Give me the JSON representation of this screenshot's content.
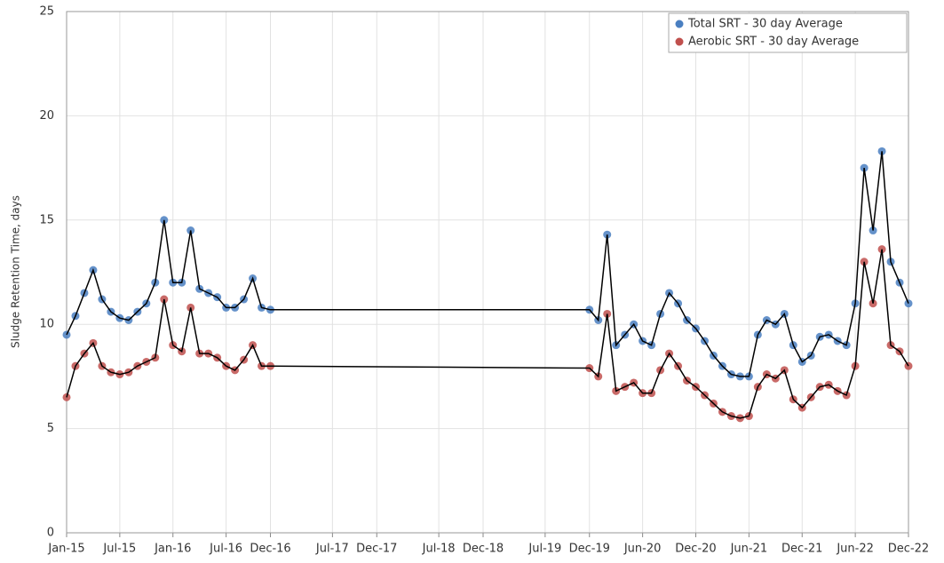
{
  "chart_data": {
    "type": "scatter",
    "y_label": "Sludge Retention Time, days",
    "x": [
      "2015-01",
      "2015-02",
      "2015-03",
      "2015-04",
      "2015-05",
      "2015-06",
      "2015-07",
      "2015-08",
      "2015-09",
      "2015-10",
      "2015-11",
      "2015-12",
      "2016-01",
      "2016-02",
      "2016-03",
      "2016-04",
      "2016-05",
      "2016-06",
      "2016-07",
      "2016-08",
      "2016-09",
      "2016-10",
      "2016-11",
      "2016-12",
      "2019-12",
      "2020-01",
      "2020-02",
      "2020-03",
      "2020-04",
      "2020-05",
      "2020-06",
      "2020-07",
      "2020-08",
      "2020-09",
      "2020-10",
      "2020-11",
      "2020-12",
      "2021-01",
      "2021-02",
      "2021-03",
      "2021-04",
      "2021-05",
      "2021-06",
      "2021-07",
      "2021-08",
      "2021-09",
      "2021-10",
      "2021-11",
      "2021-12",
      "2022-01",
      "2022-02",
      "2022-03",
      "2022-04",
      "2022-05",
      "2022-06",
      "2022-07",
      "2022-08",
      "2022-09",
      "2022-10",
      "2022-11",
      "2022-12"
    ],
    "series": [
      {
        "name": "Total SRT - 30 day Average",
        "color": "#4a7fc1",
        "values": [
          9.5,
          10.4,
          11.5,
          12.6,
          11.2,
          10.6,
          10.3,
          10.2,
          10.6,
          11.0,
          12.0,
          15.0,
          12.0,
          12.0,
          14.5,
          11.7,
          11.5,
          11.3,
          10.8,
          10.8,
          11.2,
          12.2,
          10.8,
          10.7,
          10.7,
          10.2,
          14.3,
          9.0,
          9.5,
          10.0,
          9.2,
          9.0,
          10.5,
          11.5,
          11.0,
          10.2,
          9.8,
          9.2,
          8.5,
          8.0,
          7.6,
          7.5,
          7.5,
          9.5,
          10.2,
          10.0,
          10.5,
          9.0,
          8.2,
          8.5,
          9.4,
          9.5,
          9.2,
          9.0,
          11.0,
          17.5,
          14.5,
          18.3,
          13.0,
          12.0,
          11.0
        ]
      },
      {
        "name": "Aerobic SRT - 30 day Average",
        "color": "#c0504d",
        "values": [
          6.5,
          8.0,
          8.6,
          9.1,
          8.0,
          7.7,
          7.6,
          7.7,
          8.0,
          8.2,
          8.4,
          11.2,
          9.0,
          8.7,
          10.8,
          8.6,
          8.6,
          8.4,
          8.0,
          7.8,
          8.3,
          9.0,
          8.0,
          8.0,
          7.9,
          7.5,
          10.5,
          6.8,
          7.0,
          7.2,
          6.7,
          6.7,
          7.8,
          8.6,
          8.0,
          7.3,
          7.0,
          6.6,
          6.2,
          5.8,
          5.6,
          5.5,
          5.6,
          7.0,
          7.6,
          7.4,
          7.8,
          6.4,
          6.0,
          6.5,
          7.0,
          7.1,
          6.8,
          6.6,
          8.0,
          13.0,
          11.0,
          13.6,
          9.0,
          8.7,
          8.0
        ]
      }
    ],
    "line_color": "#000000",
    "xlim": [
      "2015-01",
      "2022-12"
    ],
    "xticks": [
      {
        "value": "2015-01",
        "label": "Jan-15"
      },
      {
        "value": "2015-07",
        "label": "Jul-15"
      },
      {
        "value": "2016-01",
        "label": "Jan-16"
      },
      {
        "value": "2016-07",
        "label": "Jul-16"
      },
      {
        "value": "2016-12",
        "label": "Dec-16"
      },
      {
        "value": "2017-07",
        "label": "Jul-17"
      },
      {
        "value": "2017-12",
        "label": "Dec-17"
      },
      {
        "value": "2018-07",
        "label": "Jul-18"
      },
      {
        "value": "2018-12",
        "label": "Dec-18"
      },
      {
        "value": "2019-07",
        "label": "Jul-19"
      },
      {
        "value": "2019-12",
        "label": "Dec-19"
      },
      {
        "value": "2020-06",
        "label": "Jun-20"
      },
      {
        "value": "2020-12",
        "label": "Dec-20"
      },
      {
        "value": "2021-06",
        "label": "Jun-21"
      },
      {
        "value": "2021-12",
        "label": "Dec-21"
      },
      {
        "value": "2022-06",
        "label": "Jun-22"
      },
      {
        "value": "2022-12",
        "label": "Dec-22"
      }
    ],
    "ylim": [
      0,
      25
    ],
    "yticks": [
      0,
      5,
      10,
      15,
      20,
      25
    ],
    "grid": true,
    "legend": "top-right"
  }
}
